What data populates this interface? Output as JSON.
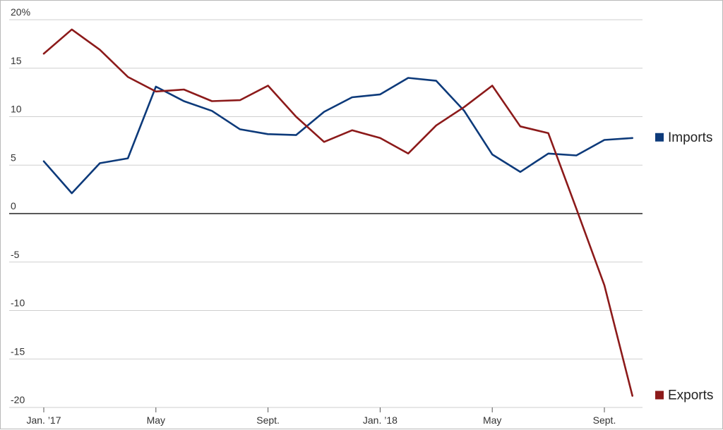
{
  "chart_data": {
    "type": "line",
    "x": [
      "Jan. 2017",
      "Feb. 2017",
      "Mar. 2017",
      "Apr. 2017",
      "May 2017",
      "Jun. 2017",
      "Jul. 2017",
      "Aug. 2017",
      "Sept. 2017",
      "Oct. 2017",
      "Nov. 2017",
      "Dec. 2017",
      "Jan. 2018",
      "Feb. 2018",
      "Mar. 2018",
      "Apr. 2018",
      "May 2018",
      "Jun. 2018",
      "Jul. 2018",
      "Aug. 2018",
      "Sept. 2018",
      "Oct. 2018"
    ],
    "x_ticks": [
      {
        "index": 0,
        "label": "Jan. ’17"
      },
      {
        "index": 4,
        "label": "May"
      },
      {
        "index": 8,
        "label": "Sept."
      },
      {
        "index": 12,
        "label": "Jan. ’18"
      },
      {
        "index": 16,
        "label": "May"
      },
      {
        "index": 20,
        "label": "Sept."
      }
    ],
    "y_ticks": [
      {
        "value": 20,
        "label": "20%"
      },
      {
        "value": 15,
        "label": "15"
      },
      {
        "value": 10,
        "label": "10"
      },
      {
        "value": 5,
        "label": "5"
      },
      {
        "value": 0,
        "label": "0"
      },
      {
        "value": -5,
        "label": "-5"
      },
      {
        "value": -10,
        "label": "-10"
      },
      {
        "value": -15,
        "label": "-15"
      },
      {
        "value": -20,
        "label": "-20"
      }
    ],
    "ylim": [
      -20,
      20
    ],
    "grid": true,
    "legend": "right",
    "series": [
      {
        "name": "Imports",
        "color": "#0d3a7a",
        "values": [
          5.4,
          2.1,
          5.2,
          5.7,
          13.1,
          11.6,
          10.6,
          8.7,
          8.2,
          8.1,
          10.5,
          12.0,
          12.3,
          14.0,
          13.7,
          10.6,
          6.1,
          4.3,
          6.2,
          6.0,
          7.6,
          7.8
        ]
      },
      {
        "name": "Exports",
        "color": "#8c1a1a",
        "values": [
          16.5,
          19.0,
          16.9,
          14.1,
          12.6,
          12.8,
          11.6,
          11.7,
          13.2,
          10.0,
          7.4,
          8.6,
          7.8,
          6.2,
          9.1,
          11.0,
          13.2,
          9.0,
          8.3,
          0.5,
          -7.4,
          -18.8
        ]
      }
    ]
  }
}
